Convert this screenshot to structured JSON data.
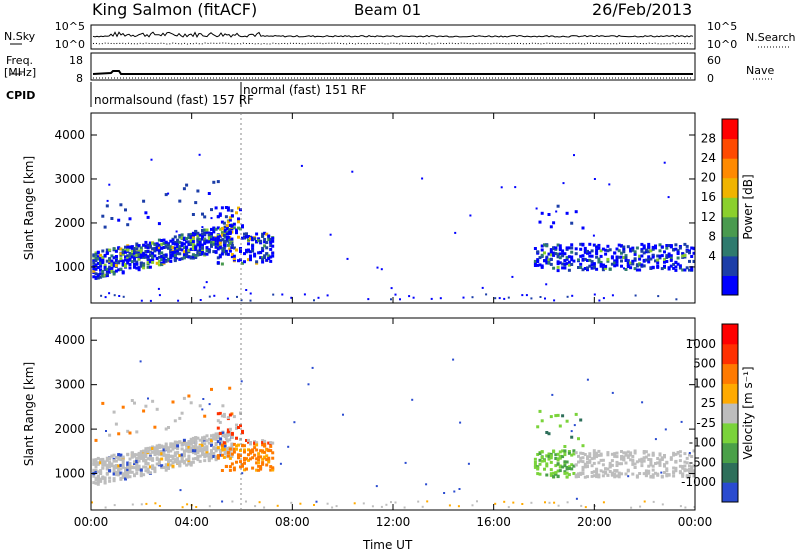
{
  "header": {
    "station": "King Salmon (fitACF)",
    "beam": "Beam 01",
    "date": "26/Feb/2013"
  },
  "left_labels": {
    "nsky": "N.Sky",
    "freq": "Freq.",
    "freq_unit": "[MHz]",
    "cpid": "CPID"
  },
  "right_labels": {
    "nsearch": "N.Search",
    "nave": "Nave"
  },
  "ticks": {
    "noise_left": [
      "10^5",
      "10^0"
    ],
    "noise_right": [
      "10^5",
      "10^0"
    ],
    "freq_left": [
      "18",
      "8"
    ],
    "freq_right": [
      "60",
      "0"
    ]
  },
  "cpid_labels": [
    "normalsound (fast) 157 RF",
    "normal (fast) 151 RF"
  ],
  "colorbars": {
    "power": {
      "label": "Power [dB]",
      "ticks": [
        "28",
        "24",
        "20",
        "16",
        "12",
        "8",
        "4"
      ],
      "colors": [
        "#0000ff",
        "#1c3ea8",
        "#2f7a6e",
        "#4a9a4f",
        "#8bcf2d",
        "#f0b400",
        "#ff8a00",
        "#ff4a00",
        "#ff0000"
      ]
    },
    "velocity": {
      "label": "Velocity [m s⁻¹]",
      "ticks": [
        "1000",
        "500",
        "100",
        "25",
        "-25",
        "-100",
        "-500",
        "-1000"
      ],
      "colors": [
        "#2a4bd0",
        "#2e6f5a",
        "#4aa048",
        "#7ad33a",
        "#bdbdbd",
        "#ffaa00",
        "#ff7a00",
        "#ff3000",
        "#ff0000"
      ]
    }
  },
  "chart_data": [
    {
      "type": "heatmap",
      "title": "",
      "xlabel": "Time UT",
      "ylabel": "Slant Range [km]",
      "x_ticks": [
        "00:00",
        "04:00",
        "08:00",
        "12:00",
        "16:00",
        "20:00",
        "00:00"
      ],
      "y_ticks": [
        "1000",
        "2000",
        "3000",
        "4000"
      ],
      "quantity": "Power [dB]",
      "xlim_hours": [
        0,
        24
      ],
      "ylim_km": [
        180,
        4500
      ]
    },
    {
      "type": "heatmap",
      "title": "",
      "xlabel": "Time UT",
      "ylabel": "Slant Range [km]",
      "x_ticks": [
        "00:00",
        "04:00",
        "08:00",
        "12:00",
        "16:00",
        "20:00",
        "00:00"
      ],
      "y_ticks": [
        "1000",
        "2000",
        "3000",
        "4000"
      ],
      "quantity": "Velocity [m s⁻¹]",
      "xlim_hours": [
        0,
        24
      ],
      "ylim_km": [
        180,
        4500
      ]
    }
  ],
  "x_axis_title": "Time UT"
}
